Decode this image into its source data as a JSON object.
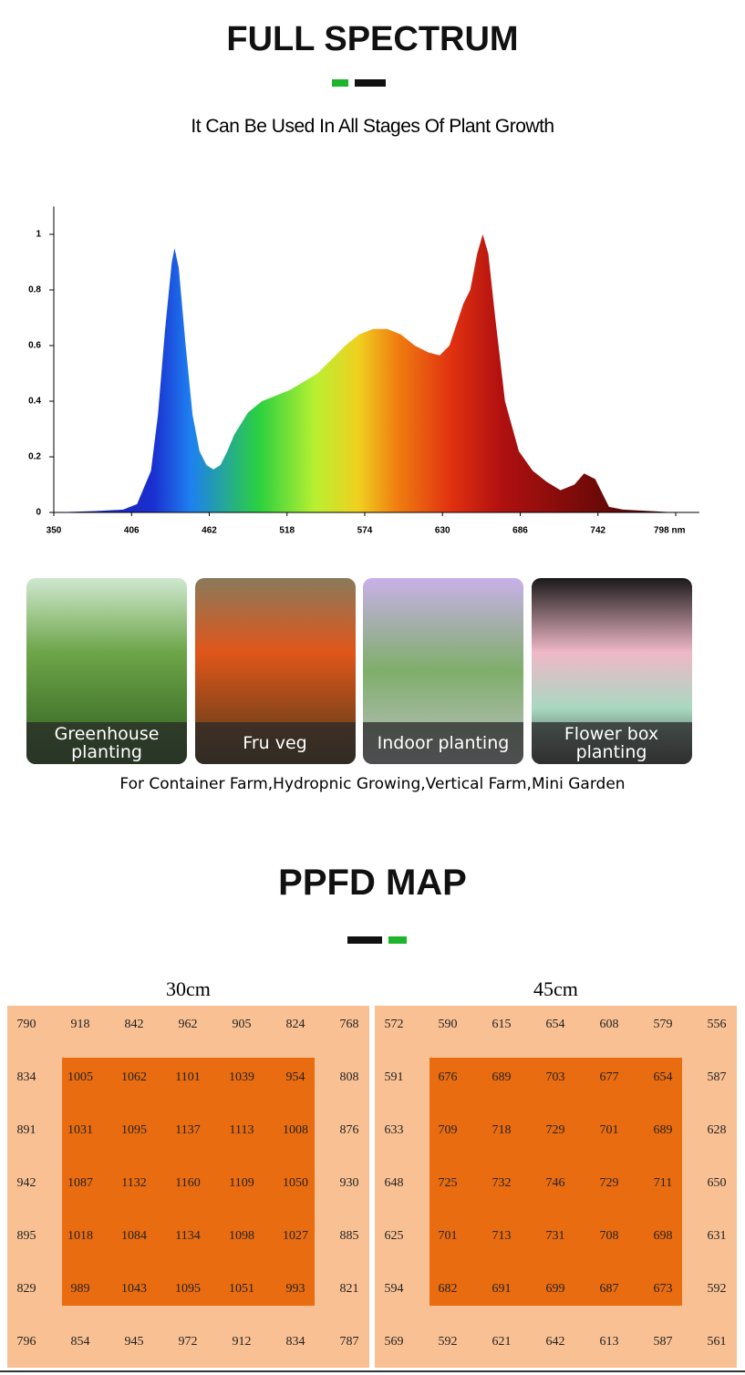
{
  "header": {
    "title": "FULL SPECTRUM",
    "subtitle": "It Can Be Used In All Stages Of Plant Growth"
  },
  "spectrum": {
    "type": "area",
    "x": [
      350,
      380,
      400,
      410,
      420,
      425,
      430,
      435,
      437,
      440,
      445,
      450,
      455,
      460,
      465,
      470,
      475,
      480,
      490,
      500,
      510,
      520,
      530,
      540,
      550,
      560,
      570,
      580,
      590,
      600,
      610,
      620,
      628,
      635,
      645,
      650,
      655,
      659,
      663,
      668,
      675,
      685,
      695,
      705,
      715,
      725,
      732,
      740,
      745,
      750,
      760,
      780,
      798
    ],
    "values": [
      0,
      0.005,
      0.01,
      0.03,
      0.15,
      0.35,
      0.65,
      0.9,
      0.95,
      0.88,
      0.6,
      0.35,
      0.22,
      0.17,
      0.155,
      0.17,
      0.22,
      0.28,
      0.36,
      0.4,
      0.42,
      0.44,
      0.47,
      0.5,
      0.55,
      0.6,
      0.64,
      0.66,
      0.66,
      0.64,
      0.6,
      0.575,
      0.565,
      0.6,
      0.75,
      0.8,
      0.93,
      1,
      0.93,
      0.7,
      0.4,
      0.22,
      0.15,
      0.11,
      0.08,
      0.1,
      0.14,
      0.12,
      0.07,
      0.02,
      0.01,
      0.005,
      0
    ],
    "xlim": [
      350,
      815
    ],
    "ylim": [
      0,
      1.1
    ],
    "xticks": [
      350,
      406,
      462,
      518,
      574,
      630,
      686,
      742,
      {
        "value": 798,
        "label": "798 nm"
      }
    ],
    "yticks": [
      0,
      0.2,
      0.4,
      0.6,
      0.8,
      1
    ]
  },
  "applications": {
    "items": [
      "Greenhouse planting",
      "Fru veg",
      "Indoor planting",
      "Flower box planting"
    ],
    "caption": "For Container Farm,Hydropnic Growing,Vertical Farm,Mini Garden"
  },
  "ppfd": {
    "title": "PPFD MAP",
    "maps": [
      {
        "title": "30cm",
        "rows": [
          [
            790,
            918,
            842,
            962,
            905,
            824,
            768
          ],
          [
            834,
            1005,
            1062,
            1101,
            1039,
            954,
            808
          ],
          [
            891,
            1031,
            1095,
            1137,
            1113,
            1008,
            876
          ],
          [
            942,
            1087,
            1132,
            1160,
            1109,
            1050,
            930
          ],
          [
            895,
            1018,
            1084,
            1134,
            1098,
            1027,
            885
          ],
          [
            829,
            989,
            1043,
            1095,
            1051,
            993,
            821
          ],
          [
            796,
            854,
            945,
            972,
            912,
            834,
            787
          ]
        ]
      },
      {
        "title": "45cm",
        "rows": [
          [
            572,
            590,
            615,
            654,
            608,
            579,
            556
          ],
          [
            591,
            676,
            689,
            703,
            677,
            654,
            587
          ],
          [
            633,
            709,
            718,
            729,
            701,
            689,
            628
          ],
          [
            648,
            725,
            732,
            746,
            729,
            711,
            650
          ],
          [
            625,
            701,
            713,
            731,
            708,
            698,
            631
          ],
          [
            594,
            682,
            691,
            699,
            687,
            673,
            592
          ],
          [
            569,
            592,
            621,
            642,
            613,
            587,
            561
          ]
        ]
      }
    ]
  }
}
